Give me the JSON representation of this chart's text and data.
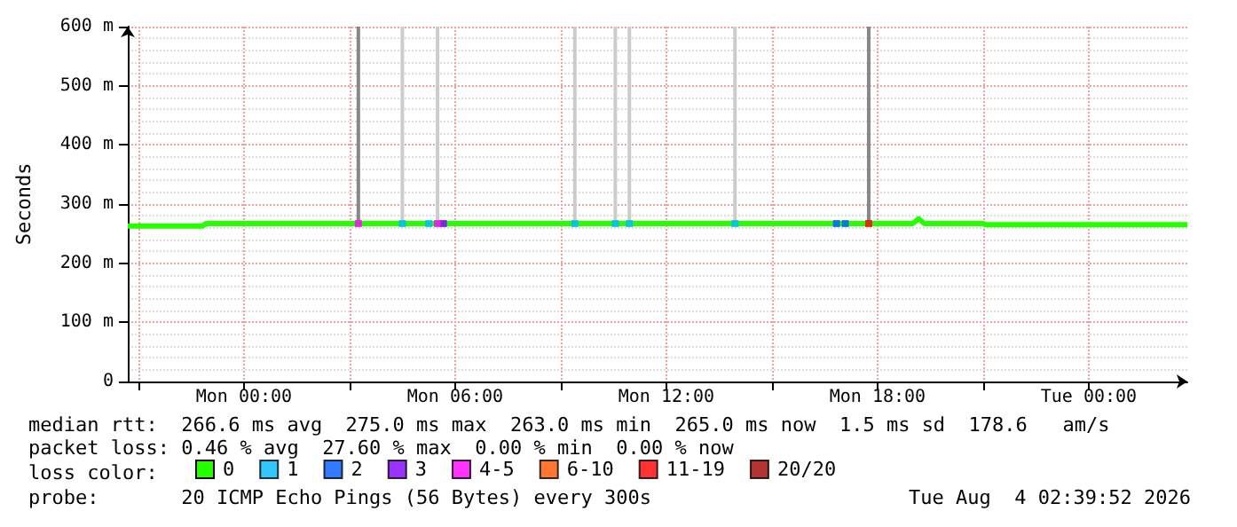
{
  "chart_data": {
    "type": "line",
    "ylabel": "Seconds",
    "legend_title": "loss color:",
    "legend": "bottom left",
    "grid": true,
    "marker": "none",
    "xlim": [
      "2026-08-02T20:42",
      "2026-08-04T02:48"
    ],
    "xticks": [
      {
        "value": "2026-08-02T21:00",
        "label": null
      },
      {
        "value": "2026-08-03T00:00",
        "label": "Mon 00:00"
      },
      {
        "value": "2026-08-03T03:00",
        "label": null
      },
      {
        "value": "2026-08-03T06:00",
        "label": "Mon 06:00"
      },
      {
        "value": "2026-08-03T09:00",
        "label": null
      },
      {
        "value": "2026-08-03T12:00",
        "label": "Mon 12:00"
      },
      {
        "value": "2026-08-03T15:00",
        "label": null
      },
      {
        "value": "2026-08-03T18:00",
        "label": "Mon 18:00"
      },
      {
        "value": "2026-08-03T21:00",
        "label": null
      },
      {
        "value": "2026-08-04T00:00",
        "label": "Tue 00:00"
      }
    ],
    "ylim": [
      0,
      600
    ],
    "yticks": [
      0,
      {
        "value": 100,
        "label": "100 m"
      },
      {
        "value": 200,
        "label": "200 m"
      },
      {
        "value": 300,
        "label": "300 m"
      },
      {
        "value": 400,
        "label": "400 m"
      },
      {
        "value": 500,
        "label": "500 m"
      },
      {
        "value": 600,
        "label": "600 m"
      }
    ],
    "series": [
      {
        "type": "bar",
        "color": "#888888",
        "x": [
          "2026-08-03T03:15",
          "2026-08-03T17:45"
        ],
        "base": [
          267,
          267
        ],
        "values": [
          333,
          333
        ]
      },
      {
        "type": "bar",
        "color": "#cccccc",
        "x": [
          "2026-08-03T04:30",
          "2026-08-03T05:30",
          "2026-08-03T09:24",
          "2026-08-03T10:33",
          "2026-08-03T10:57",
          "2026-08-03T13:57"
        ],
        "base": [
          267,
          267,
          267,
          267,
          267,
          267
        ],
        "values": [
          333,
          333,
          333,
          333,
          333,
          333
        ]
      },
      {
        "name": "0",
        "color": "#26ff00",
        "x": [
          "2026-08-02T20:42",
          "2026-08-02T22:50",
          "2026-08-02T22:55",
          "2026-08-03T19:00",
          "2026-08-03T19:10",
          "2026-08-03T19:20",
          "2026-08-03T21:00",
          "2026-08-03T21:05",
          "2026-08-04T02:48"
        ],
        "values": [
          263,
          263,
          267,
          267,
          275,
          267,
          267,
          265,
          265
        ]
      },
      {
        "type": "scatter",
        "marker": "square",
        "name": "1",
        "color": "#00b8ff",
        "x": [
          "2026-08-03T04:30",
          "2026-08-03T05:15",
          "2026-08-03T09:24",
          "2026-08-03T10:33",
          "2026-08-03T10:57",
          "2026-08-03T13:57"
        ],
        "values": [
          267,
          267,
          267,
          267,
          267,
          267
        ]
      },
      {
        "type": "scatter",
        "marker": "square",
        "name": "2",
        "color": "#0059ff",
        "x": [
          "2026-08-03T16:50",
          "2026-08-03T17:05"
        ],
        "values": [
          267,
          267
        ]
      },
      {
        "type": "scatter",
        "marker": "square",
        "name": "3",
        "color": "#7e00ff",
        "x": [
          "2026-08-03T05:40"
        ],
        "values": [
          267
        ]
      },
      {
        "type": "scatter",
        "marker": "square",
        "name": "4-5",
        "color": "#ff00ff",
        "x": [
          "2026-08-03T03:15",
          "2026-08-03T05:30"
        ],
        "values": [
          267,
          267
        ]
      },
      {
        "type": "scatter",
        "marker": "square",
        "name": "6-10",
        "color": "#ff5500"
      },
      {
        "type": "scatter",
        "marker": "square",
        "name": "11-19",
        "color": "#ff0000",
        "x": [
          "2026-08-03T17:45"
        ],
        "values": [
          267
        ]
      },
      {
        "type": "scatter",
        "marker": "square",
        "name": "20/20",
        "color": "#a10000"
      }
    ],
    "annotations": [
      "median rtt:  266.6 ms avg  275.0 ms max  263.0 ms min  265.0 ms now  1.5 ms sd  178.6   am/s",
      "packet loss: 0.46 % avg  27.60 % max  0.00 % min  0.00 % now",
      "probe:       20 ICMP Echo Pings (56 Bytes) every 300s",
      "Tue Aug  4 02:39:52 2026"
    ]
  }
}
